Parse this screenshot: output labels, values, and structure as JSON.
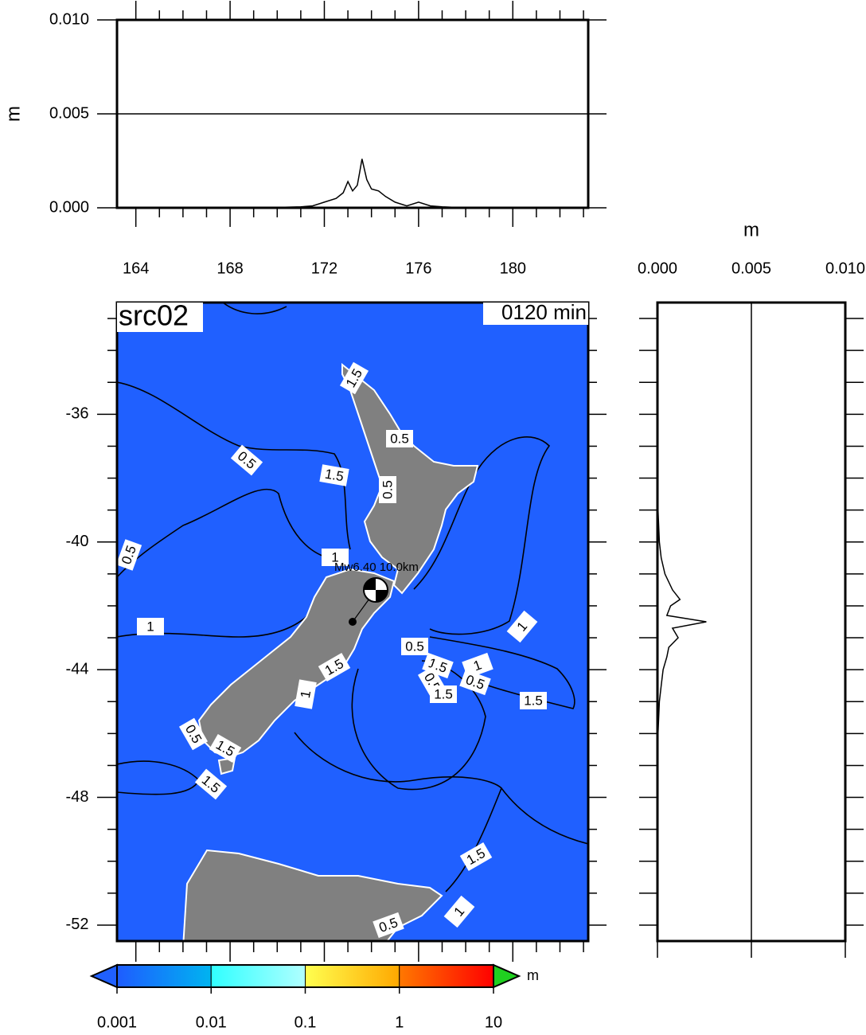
{
  "chart_data": [
    {
      "type": "line",
      "ylabel": "m",
      "color": "#000000",
      "xlim": [
        163.2,
        183.2
      ],
      "ylim": [
        0,
        0.01
      ],
      "yticks": [
        {
          "value": 0,
          "label": "0.000"
        },
        0.005,
        {
          "value": 0.01,
          "label": "0.010"
        }
      ],
      "grid": true,
      "x": [
        169,
        170,
        171,
        171.5,
        172,
        172.5,
        172.8,
        173,
        173.2,
        173.4,
        173.5,
        173.6,
        173.8,
        174,
        174.3,
        174.6,
        175,
        175.5,
        176,
        176.5,
        177,
        178
      ],
      "values": [
        0,
        2e-05,
        5e-05,
        0.0001,
        0.0003,
        0.0005,
        0.0008,
        0.0014,
        0.0009,
        0.0012,
        0.0019,
        0.0026,
        0.0015,
        0.001,
        0.0009,
        0.0006,
        0.0003,
        0.0001,
        0.0003,
        0.0001,
        5e-05,
        0
      ]
    },
    {
      "type": "hline",
      "xlabel": "m",
      "color": "#000000",
      "xlim": [
        0,
        0.01
      ],
      "ylim": [
        -52.5,
        -32.5
      ],
      "xticks": [
        {
          "value": 0,
          "label": "0.000"
        },
        0.005,
        {
          "value": 0.01,
          "label": "0.010"
        }
      ],
      "grid": true,
      "y": [
        -38,
        -39,
        -40,
        -40.5,
        -41,
        -41.5,
        -41.8,
        -42,
        -42.3,
        -42.5,
        -42.7,
        -43,
        -43.3,
        -43.6,
        -44,
        -44.5,
        -45,
        -46,
        -47
      ],
      "values": [
        0,
        3e-05,
        0.0001,
        0.0002,
        0.0004,
        0.0008,
        0.0012,
        0.0007,
        0.0005,
        0.0026,
        0.0008,
        0.0011,
        0.0006,
        0.0005,
        0.0003,
        0.0002,
        0.0001,
        3e-05,
        0
      ]
    },
    {
      "type": "map",
      "title": "src02",
      "annotation": "0120 min",
      "event_label": "Mw6.40  10.0km",
      "xlim": [
        163.2,
        183.2
      ],
      "xticks": [
        164,
        168,
        172,
        176,
        180
      ],
      "ylim": [
        -52.5,
        -32.5
      ],
      "yticks": [
        -36,
        -40,
        -44,
        -48,
        -52
      ],
      "ocean_color": "#2060ff",
      "land_color": "#808080",
      "contour_labels": [
        "1.5",
        "0.5",
        "0.5",
        "1.5",
        "0.5",
        "0.5",
        "1",
        "1",
        "1",
        "0.5",
        "1.5",
        "1",
        "1.5",
        "0.5",
        "0.5",
        "1.5",
        "1",
        "1.5",
        "0.5",
        "1.5",
        "1.5",
        "1.5",
        "1",
        "0.5"
      ]
    },
    {
      "type": "colorbar",
      "unit": "m",
      "log": true,
      "lim": [
        0.001,
        10
      ],
      "ticks": [
        0.001,
        0.01,
        0.1,
        1,
        10
      ],
      "colors": [
        [
          "#1e5cff",
          "#00b4f0"
        ],
        [
          "#30ffff",
          "#b0ffff"
        ],
        [
          "#ffff50",
          "#ffa800"
        ],
        [
          "#ff7800",
          "#ff0000"
        ]
      ],
      "under_color": "#2060ff",
      "over_color": "#20d020"
    }
  ]
}
